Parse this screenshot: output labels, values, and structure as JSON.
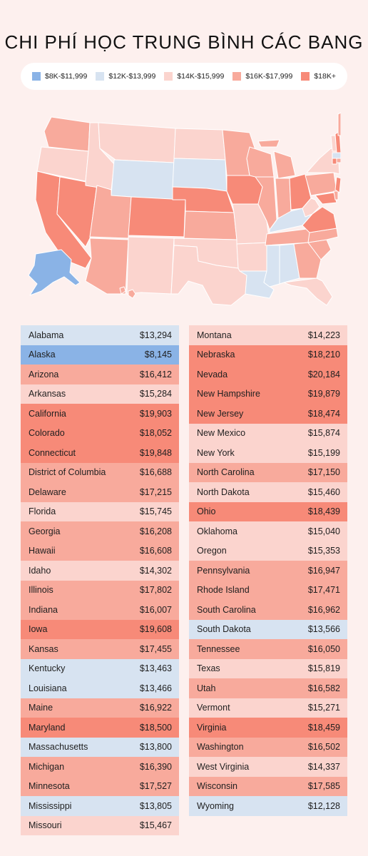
{
  "title": "CHI PHÍ HỌC TRUNG BÌNH CÁC BANG",
  "legend": [
    {
      "label": "$8K-$11,999",
      "color": "#8ab3e6"
    },
    {
      "label": "$12K-$13,999",
      "color": "#d7e3f1"
    },
    {
      "label": "$14K-$15,999",
      "color": "#fbd4ce"
    },
    {
      "label": "$16K-$17,999",
      "color": "#f8aa9c"
    },
    {
      "label": "$18K+",
      "color": "#f78a78"
    }
  ],
  "tiers": {
    "t1": "#8ab3e6",
    "t2": "#d7e3f1",
    "t3": "#fbd4ce",
    "t4": "#f8aa9c",
    "t5": "#f78a78"
  },
  "table_left": [
    {
      "state": "Alabama",
      "value": "$13,294",
      "tier": "t2"
    },
    {
      "state": "Alaska",
      "value": "$8,145",
      "tier": "t1"
    },
    {
      "state": "Arizona",
      "value": "$16,412",
      "tier": "t4"
    },
    {
      "state": "Arkansas",
      "value": "$15,284",
      "tier": "t3"
    },
    {
      "state": "California",
      "value": "$19,903",
      "tier": "t5"
    },
    {
      "state": "Colorado",
      "value": "$18,052",
      "tier": "t5"
    },
    {
      "state": "Connecticut",
      "value": "$19,848",
      "tier": "t5"
    },
    {
      "state": "District of Columbia",
      "value": "$16,688",
      "tier": "t4"
    },
    {
      "state": "Delaware",
      "value": "$17,215",
      "tier": "t4"
    },
    {
      "state": "Florida",
      "value": "$15,745",
      "tier": "t3"
    },
    {
      "state": "Georgia",
      "value": "$16,208",
      "tier": "t4"
    },
    {
      "state": "Hawaii",
      "value": "$16,608",
      "tier": "t4"
    },
    {
      "state": "Idaho",
      "value": "$14,302",
      "tier": "t3"
    },
    {
      "state": "Illinois",
      "value": "$17,802",
      "tier": "t4"
    },
    {
      "state": "Indiana",
      "value": "$16,007",
      "tier": "t4"
    },
    {
      "state": "Iowa",
      "value": "$19,608",
      "tier": "t5"
    },
    {
      "state": "Kansas",
      "value": "$17,455",
      "tier": "t4"
    },
    {
      "state": "Kentucky",
      "value": "$13,463",
      "tier": "t2"
    },
    {
      "state": "Louisiana",
      "value": "$13,466",
      "tier": "t2"
    },
    {
      "state": "Maine",
      "value": "$16,922",
      "tier": "t4"
    },
    {
      "state": "Maryland",
      "value": "$18,500",
      "tier": "t5"
    },
    {
      "state": "Massachusetts",
      "value": "$13,800",
      "tier": "t2"
    },
    {
      "state": "Michigan",
      "value": "$16,390",
      "tier": "t4"
    },
    {
      "state": "Minnesota",
      "value": "$17,527",
      "tier": "t4"
    },
    {
      "state": "Mississippi",
      "value": "$13,805",
      "tier": "t2"
    },
    {
      "state": "Missouri",
      "value": "$15,467",
      "tier": "t3"
    }
  ],
  "table_right": [
    {
      "state": "Montana",
      "value": "$14,223",
      "tier": "t3"
    },
    {
      "state": "Nebraska",
      "value": "$18,210",
      "tier": "t5"
    },
    {
      "state": "Nevada",
      "value": "$20,184",
      "tier": "t5"
    },
    {
      "state": "New Hampshire",
      "value": "$19,879",
      "tier": "t5"
    },
    {
      "state": "New Jersey",
      "value": "$18,474",
      "tier": "t5"
    },
    {
      "state": "New Mexico",
      "value": "$15,874",
      "tier": "t3"
    },
    {
      "state": "New York",
      "value": "$15,199",
      "tier": "t3"
    },
    {
      "state": "North Carolina",
      "value": "$17,150",
      "tier": "t4"
    },
    {
      "state": "North Dakota",
      "value": "$15,460",
      "tier": "t3"
    },
    {
      "state": "Ohio",
      "value": "$18,439",
      "tier": "t5"
    },
    {
      "state": "Oklahoma",
      "value": "$15,040",
      "tier": "t3"
    },
    {
      "state": "Oregon",
      "value": "$15,353",
      "tier": "t3"
    },
    {
      "state": "Pennsylvania",
      "value": "$16,947",
      "tier": "t4"
    },
    {
      "state": "Rhode Island",
      "value": "$17,471",
      "tier": "t4"
    },
    {
      "state": "South Carolina",
      "value": "$16,962",
      "tier": "t4"
    },
    {
      "state": "South Dakota",
      "value": "$13,566",
      "tier": "t2"
    },
    {
      "state": "Tennessee",
      "value": "$16,050",
      "tier": "t4"
    },
    {
      "state": "Texas",
      "value": "$15,819",
      "tier": "t3"
    },
    {
      "state": "Utah",
      "value": "$16,582",
      "tier": "t4"
    },
    {
      "state": "Vermont",
      "value": "$15,271",
      "tier": "t3"
    },
    {
      "state": "Virginia",
      "value": "$18,459",
      "tier": "t5"
    },
    {
      "state": "Washington",
      "value": "$16,502",
      "tier": "t4"
    },
    {
      "state": "West Virginia",
      "value": "$14,337",
      "tier": "t3"
    },
    {
      "state": "Wisconsin",
      "value": "$17,585",
      "tier": "t4"
    },
    {
      "state": "Wyoming",
      "value": "$12,128",
      "tier": "t2"
    }
  ]
}
